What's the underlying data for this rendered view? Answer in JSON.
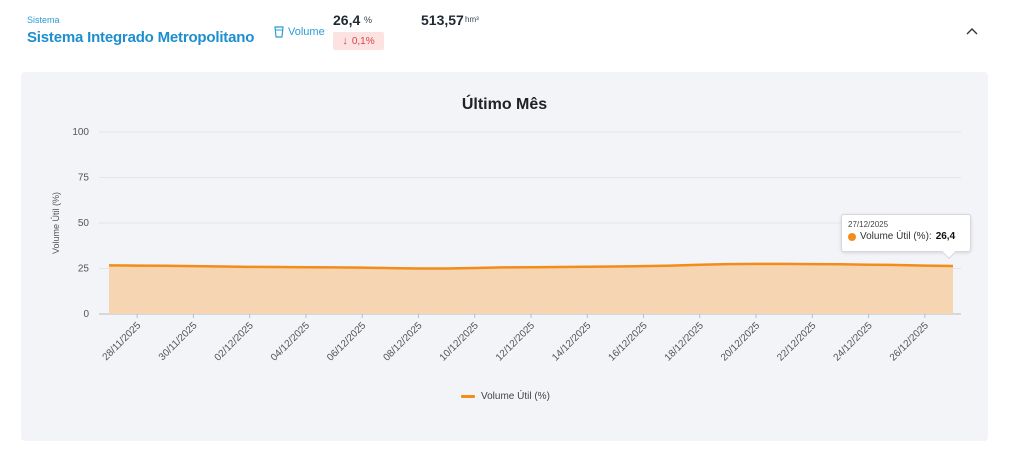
{
  "header": {
    "system_label": "Sistema",
    "system_name": "Sistema Integrado Metropolitano",
    "volume_label": "Volume",
    "volume_percent": "26,4",
    "percent_unit": "%",
    "change_value": "0,1%",
    "change_direction": "down",
    "volume_hm3": "513,57",
    "hm3_unit": "hm³"
  },
  "icons": {
    "volume": "cup-icon",
    "collapse": "chevron-up-icon",
    "change": "arrow-down-icon"
  },
  "colors": {
    "accent": "#1d8ed0",
    "series": "#f28c1b",
    "area_fill": "#f6d5b3",
    "badge_bg": "#fde2e2",
    "badge_text": "#d64545",
    "card_bg": "#f3f4f8"
  },
  "tooltip": {
    "date": "27/12/2025",
    "series_label": "Volume Útil (%):",
    "value": "26,4"
  },
  "legend": {
    "label": "Volume Útil (%)"
  },
  "chart_data": {
    "type": "area",
    "title": "Último Mês",
    "xlabel": "",
    "ylabel": "Volume Útil (%)",
    "ylim": [
      0,
      100
    ],
    "yticks": [
      "0",
      "25",
      "50",
      "75",
      "100"
    ],
    "x_tick_labels": [
      "28/11/2025",
      "30/11/2025",
      "02/12/2025",
      "04/12/2025",
      "06/12/2025",
      "08/12/2025",
      "10/12/2025",
      "12/12/2025",
      "14/12/2025",
      "16/12/2025",
      "18/12/2025",
      "20/12/2025",
      "22/12/2025",
      "24/12/2025",
      "26/12/2025"
    ],
    "x": [
      "27/11/2025",
      "28/11/2025",
      "29/11/2025",
      "30/11/2025",
      "01/12/2025",
      "02/12/2025",
      "03/12/2025",
      "04/12/2025",
      "05/12/2025",
      "06/12/2025",
      "07/12/2025",
      "08/12/2025",
      "09/12/2025",
      "10/12/2025",
      "11/12/2025",
      "12/12/2025",
      "13/12/2025",
      "14/12/2025",
      "15/12/2025",
      "16/12/2025",
      "17/12/2025",
      "18/12/2025",
      "19/12/2025",
      "20/12/2025",
      "21/12/2025",
      "22/12/2025",
      "23/12/2025",
      "24/12/2025",
      "25/12/2025",
      "26/12/2025",
      "27/12/2025"
    ],
    "series": [
      {
        "name": "Volume Útil (%)",
        "values": [
          26.7,
          26.6,
          26.5,
          26.3,
          26.1,
          25.9,
          25.8,
          25.7,
          25.6,
          25.5,
          25.2,
          25.0,
          25.0,
          25.3,
          25.6,
          25.7,
          25.8,
          26.0,
          26.1,
          26.3,
          26.6,
          27.1,
          27.4,
          27.5,
          27.5,
          27.4,
          27.3,
          27.1,
          26.9,
          26.6,
          26.4
        ]
      }
    ],
    "grid": true,
    "legend_position": "bottom"
  }
}
